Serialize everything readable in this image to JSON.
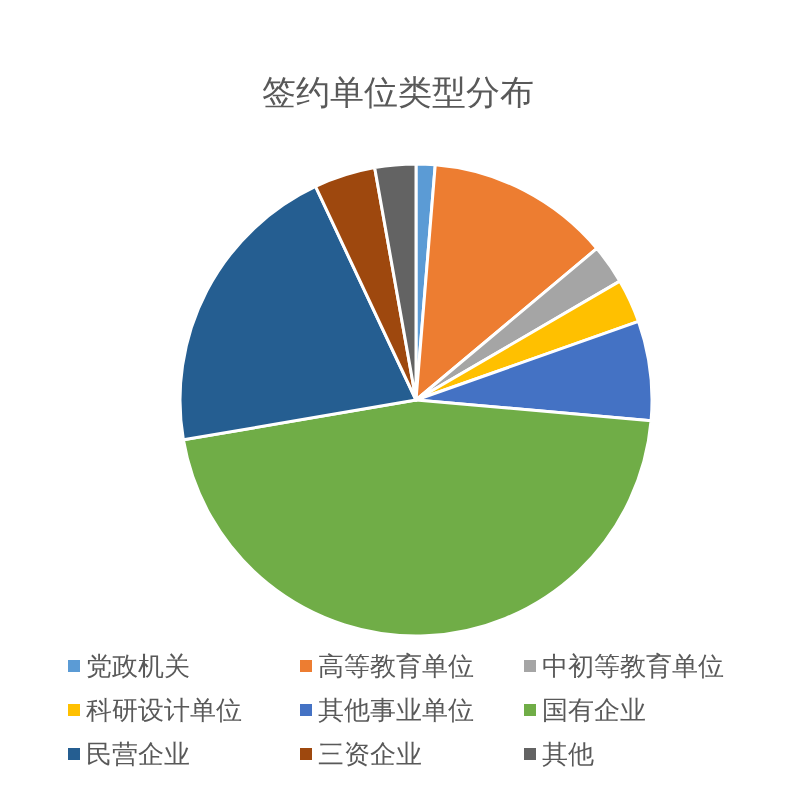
{
  "chart_data": {
    "type": "pie",
    "title": "签约单位类型分布",
    "categories": [
      "党政机关",
      "高等教育单位",
      "中初等教育单位",
      "科研设计单位",
      "其他事业单位",
      "国有企业",
      "民营企业",
      "三资企业",
      "其他"
    ],
    "values": [
      1.3,
      12.6,
      2.7,
      3.0,
      6.8,
      45.9,
      20.7,
      4.2,
      2.8
    ],
    "colors": [
      "#5b9bd5",
      "#ed7d31",
      "#a5a5a5",
      "#ffc000",
      "#4472c4",
      "#70ad47",
      "#255e91",
      "#9e480e",
      "#636363"
    ],
    "legend": "bottom"
  }
}
